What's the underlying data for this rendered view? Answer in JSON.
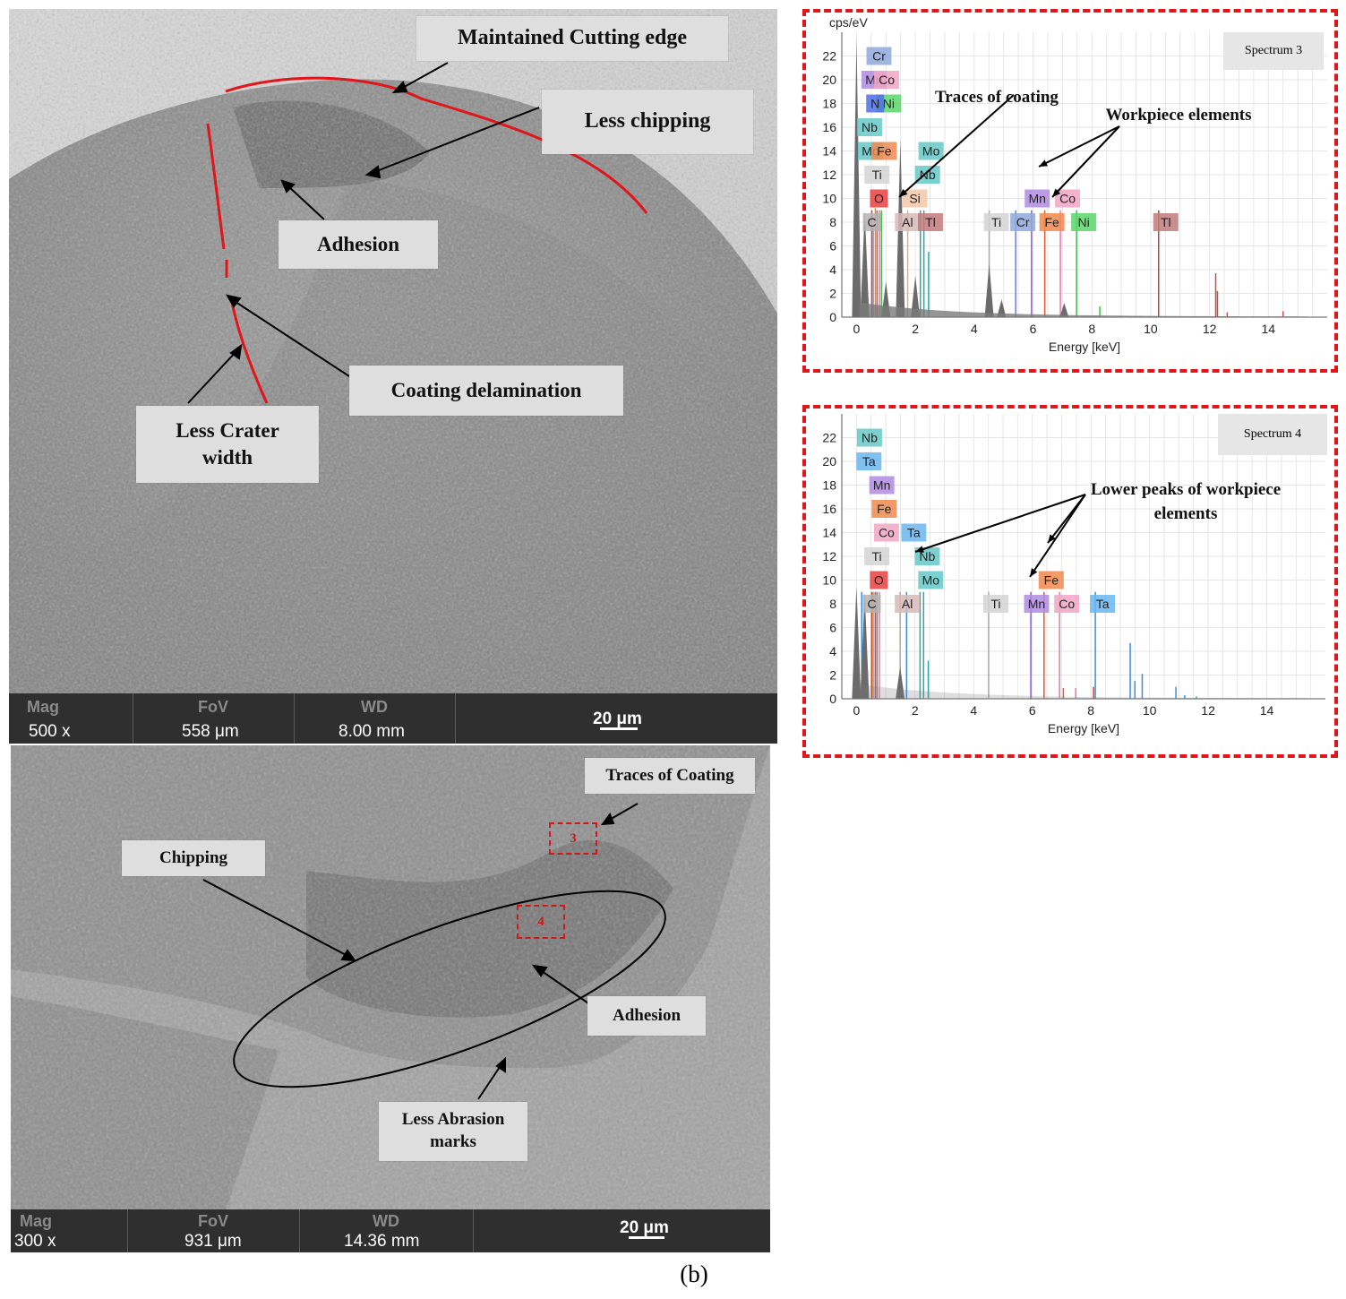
{
  "sem_top": {
    "annotations": {
      "cutting_edge": "Maintained Cutting edge",
      "less_chipping": "Less chipping",
      "adhesion": "Adhesion",
      "coating_delamination": "Coating delamination",
      "crater_width": "Less Crater\nwidth"
    },
    "info_bar": {
      "mag_label": "Mag",
      "mag_value": "500 x",
      "fov_label": "FoV",
      "fov_value": "558 μm",
      "wd_label": "WD",
      "wd_value": "8.00 mm",
      "scale": "20 μm"
    },
    "colors": {
      "boundary_line": "#e0161b",
      "background": "#8c8c8c"
    }
  },
  "sem_bottom": {
    "annotations": {
      "traces_of_coating": "Traces of Coating",
      "chipping": "Chipping",
      "adhesion": "Adhesion",
      "abrasion": "Less Abrasion\nmarks"
    },
    "roi_markers": [
      "3",
      "4"
    ],
    "info_bar": {
      "mag_label": "Mag",
      "mag_value": "300 x",
      "fov_label": "FoV",
      "fov_value": "931 μm",
      "wd_label": "WD",
      "wd_value": "14.36 mm",
      "scale": "20 μm"
    }
  },
  "chart_data": [
    {
      "type": "line",
      "title": "Spectrum 3",
      "ylabel": "cps/eV",
      "xlabel": "Energy [keV]",
      "xlim": [
        -0.5,
        16
      ],
      "ylim": [
        0,
        24
      ],
      "x_ticks": [
        0,
        2,
        4,
        6,
        8,
        10,
        12,
        14
      ],
      "y_ticks": [
        0,
        2,
        4,
        6,
        8,
        10,
        12,
        14,
        16,
        18,
        20,
        22
      ],
      "grid": true,
      "annotations": [
        "Traces of coating",
        "Workpiece elements"
      ],
      "element_labels": [
        {
          "label": "Cr",
          "x": 0.52,
          "y": 22
        },
        {
          "label": "Mn",
          "x": 0.35,
          "y": 20
        },
        {
          "label": "Co",
          "x": 0.78,
          "y": 20
        },
        {
          "label": "Ni",
          "x": 0.85,
          "y": 18
        },
        {
          "label": "N",
          "x": 0.39,
          "y": 18
        },
        {
          "label": "Nb",
          "x": 0.2,
          "y": 16
        },
        {
          "label": "Mo",
          "x": 0.23,
          "y": 14
        },
        {
          "label": "Fe",
          "x": 0.7,
          "y": 14
        },
        {
          "label": "Ti",
          "x": 0.45,
          "y": 12
        },
        {
          "label": "Mo",
          "x": 2.29,
          "y": 14
        },
        {
          "label": "Nb",
          "x": 2.17,
          "y": 12
        },
        {
          "label": "O",
          "x": 0.52,
          "y": 10
        },
        {
          "label": "Si",
          "x": 1.74,
          "y": 10
        },
        {
          "label": "Mn",
          "x": 5.9,
          "y": 10
        },
        {
          "label": "Co",
          "x": 6.93,
          "y": 10
        },
        {
          "label": "C",
          "x": 0.28,
          "y": 8
        },
        {
          "label": "Al",
          "x": 1.49,
          "y": 8
        },
        {
          "label": "Tl",
          "x": 2.27,
          "y": 8
        },
        {
          "label": "Ti",
          "x": 4.51,
          "y": 8
        },
        {
          "label": "Cr",
          "x": 5.41,
          "y": 8
        },
        {
          "label": "Fe",
          "x": 6.4,
          "y": 8
        },
        {
          "label": "Ni",
          "x": 7.48,
          "y": 8
        },
        {
          "label": "Tl",
          "x": 10.27,
          "y": 8
        }
      ],
      "peaks": [
        {
          "x": 0.0,
          "y": 23.5,
          "color": "#555555"
        },
        {
          "x": 0.28,
          "y": 9.0,
          "color": "#555555"
        },
        {
          "x": 0.52,
          "y": 9.0,
          "color": "#e03a3a"
        },
        {
          "x": 0.57,
          "y": 7.5,
          "color": "#7aa0d8"
        },
        {
          "x": 0.64,
          "y": 9.2,
          "color": "#e8891a"
        },
        {
          "x": 0.7,
          "y": 9.0,
          "color": "#d05560"
        },
        {
          "x": 0.78,
          "y": 9.0,
          "color": "#e07ab0"
        },
        {
          "x": 0.85,
          "y": 9.0,
          "color": "#3cc04a"
        },
        {
          "x": 1.0,
          "y": 3.0,
          "color": "#555555"
        },
        {
          "x": 1.49,
          "y": 15.0,
          "color": "#555555"
        },
        {
          "x": 1.74,
          "y": 9.0,
          "color": "#d8b090"
        },
        {
          "x": 2.17,
          "y": 9.0,
          "color": "#2fa5a5"
        },
        {
          "x": 2.29,
          "y": 9.0,
          "color": "#2fa5a5"
        },
        {
          "x": 2.0,
          "y": 3.5,
          "color": "#555555"
        },
        {
          "x": 2.45,
          "y": 5.5,
          "color": "#2fa5a5"
        },
        {
          "x": 4.51,
          "y": 9.0,
          "color": "#aaaaaa"
        },
        {
          "x": 4.51,
          "y": 4.5,
          "color": "#555555"
        },
        {
          "x": 4.93,
          "y": 1.5,
          "color": "#555555"
        },
        {
          "x": 5.41,
          "y": 9.0,
          "color": "#6a7fcf"
        },
        {
          "x": 5.95,
          "y": 9.0,
          "color": "#8a5acb"
        },
        {
          "x": 6.4,
          "y": 9.0,
          "color": "#e2592d"
        },
        {
          "x": 6.93,
          "y": 9.0,
          "color": "#e07ab0"
        },
        {
          "x": 7.06,
          "y": 1.2,
          "color": "#555555"
        },
        {
          "x": 7.48,
          "y": 9.0,
          "color": "#3cc04a"
        },
        {
          "x": 8.27,
          "y": 0.9,
          "color": "#3cc04a"
        },
        {
          "x": 10.27,
          "y": 9.0,
          "color": "#9e4a4a"
        },
        {
          "x": 12.21,
          "y": 3.7,
          "color": "#c0504d"
        },
        {
          "x": 12.27,
          "y": 2.2,
          "color": "#c0504d"
        },
        {
          "x": 12.6,
          "y": 0.4,
          "color": "#c0504d"
        },
        {
          "x": 14.5,
          "y": 0.5,
          "color": "#c0504d"
        }
      ]
    },
    {
      "type": "line",
      "title": "Spectrum 4",
      "ylabel": "",
      "xlabel": "Energy [keV]",
      "xlim": [
        -0.5,
        16
      ],
      "ylim": [
        0,
        24
      ],
      "x_ticks": [
        0,
        2,
        4,
        6,
        8,
        10,
        12,
        14
      ],
      "y_ticks": [
        0,
        2,
        4,
        6,
        8,
        10,
        12,
        14,
        16,
        18,
        20,
        22
      ],
      "grid": true,
      "annotations": [
        "Lower peaks of workpiece\nelements"
      ],
      "element_labels": [
        {
          "label": "Nb",
          "x": 0.2,
          "y": 22
        },
        {
          "label": "Ta",
          "x": 0.18,
          "y": 20
        },
        {
          "label": "Mn",
          "x": 0.62,
          "y": 18
        },
        {
          "label": "Fe",
          "x": 0.7,
          "y": 16
        },
        {
          "label": "Co",
          "x": 0.78,
          "y": 14
        },
        {
          "label": "Ta",
          "x": 1.71,
          "y": 14
        },
        {
          "label": "Ti",
          "x": 0.45,
          "y": 12
        },
        {
          "label": "Nb",
          "x": 2.17,
          "y": 12
        },
        {
          "label": "O",
          "x": 0.52,
          "y": 10
        },
        {
          "label": "Mo",
          "x": 2.29,
          "y": 10
        },
        {
          "label": "Fe",
          "x": 6.4,
          "y": 10
        },
        {
          "label": "C",
          "x": 0.28,
          "y": 8
        },
        {
          "label": "Al",
          "x": 1.49,
          "y": 8
        },
        {
          "label": "Ti",
          "x": 4.51,
          "y": 8
        },
        {
          "label": "Mn",
          "x": 5.9,
          "y": 8
        },
        {
          "label": "Co",
          "x": 6.93,
          "y": 8
        },
        {
          "label": "Ta",
          "x": 8.15,
          "y": 8
        }
      ],
      "peaks": [
        {
          "x": 0.0,
          "y": 9.5,
          "color": "#555555"
        },
        {
          "x": 0.18,
          "y": 9.0,
          "color": "#3a8ee0"
        },
        {
          "x": 0.28,
          "y": 9.0,
          "color": "#555555"
        },
        {
          "x": 0.52,
          "y": 9.0,
          "color": "#e03a3a"
        },
        {
          "x": 0.57,
          "y": 9.0,
          "color": "#e8891a"
        },
        {
          "x": 0.64,
          "y": 9.0,
          "color": "#8a5acb"
        },
        {
          "x": 0.7,
          "y": 9.0,
          "color": "#e2592d"
        },
        {
          "x": 0.78,
          "y": 9.0,
          "color": "#e07ab0"
        },
        {
          "x": 1.49,
          "y": 9.0,
          "color": "#c8a0a0"
        },
        {
          "x": 1.49,
          "y": 2.7,
          "color": "#555555"
        },
        {
          "x": 1.71,
          "y": 9.0,
          "color": "#3a8ee0"
        },
        {
          "x": 2.17,
          "y": 9.0,
          "color": "#2fa5a5"
        },
        {
          "x": 2.29,
          "y": 9.0,
          "color": "#2fa5a5"
        },
        {
          "x": 2.45,
          "y": 3.2,
          "color": "#2fa5a5"
        },
        {
          "x": 4.51,
          "y": 9.0,
          "color": "#aaaaaa"
        },
        {
          "x": 5.95,
          "y": 9.0,
          "color": "#8a5acb"
        },
        {
          "x": 6.4,
          "y": 9.0,
          "color": "#e2592d"
        },
        {
          "x": 6.93,
          "y": 9.0,
          "color": "#e07ab0"
        },
        {
          "x": 7.06,
          "y": 0.9,
          "color": "#e2592d"
        },
        {
          "x": 7.48,
          "y": 0.9,
          "color": "#e07ab0"
        },
        {
          "x": 8.15,
          "y": 9.0,
          "color": "#3a8ee0"
        },
        {
          "x": 8.09,
          "y": 1.0,
          "color": "#e03a3a"
        },
        {
          "x": 9.34,
          "y": 4.7,
          "color": "#3a8ee0"
        },
        {
          "x": 9.5,
          "y": 1.5,
          "color": "#3a8ee0"
        },
        {
          "x": 9.75,
          "y": 2.1,
          "color": "#3a8ee0"
        },
        {
          "x": 10.9,
          "y": 1.0,
          "color": "#3a8ee0"
        },
        {
          "x": 11.2,
          "y": 0.3,
          "color": "#3a8ee0"
        },
        {
          "x": 11.6,
          "y": 0.2,
          "color": "#3a8ee0"
        }
      ]
    }
  ],
  "label_colors": {
    "C": "#b3b3b3",
    "O": "#e84040",
    "Al": "#d8b8b8",
    "Si": "#f2c8a8",
    "Tl": "#c27a7a",
    "Ti": "#d4d4d4",
    "Cr": "#8fa8dc",
    "Mn": "#b08be0",
    "Fe": "#f0894e",
    "Co": "#f2a6c4",
    "Ni": "#5cd66a",
    "Nb": "#66c8c8",
    "Mo": "#66c8c8",
    "N": "#4f6ee8",
    "Ta": "#6ab6f2"
  },
  "caption": "(b)"
}
